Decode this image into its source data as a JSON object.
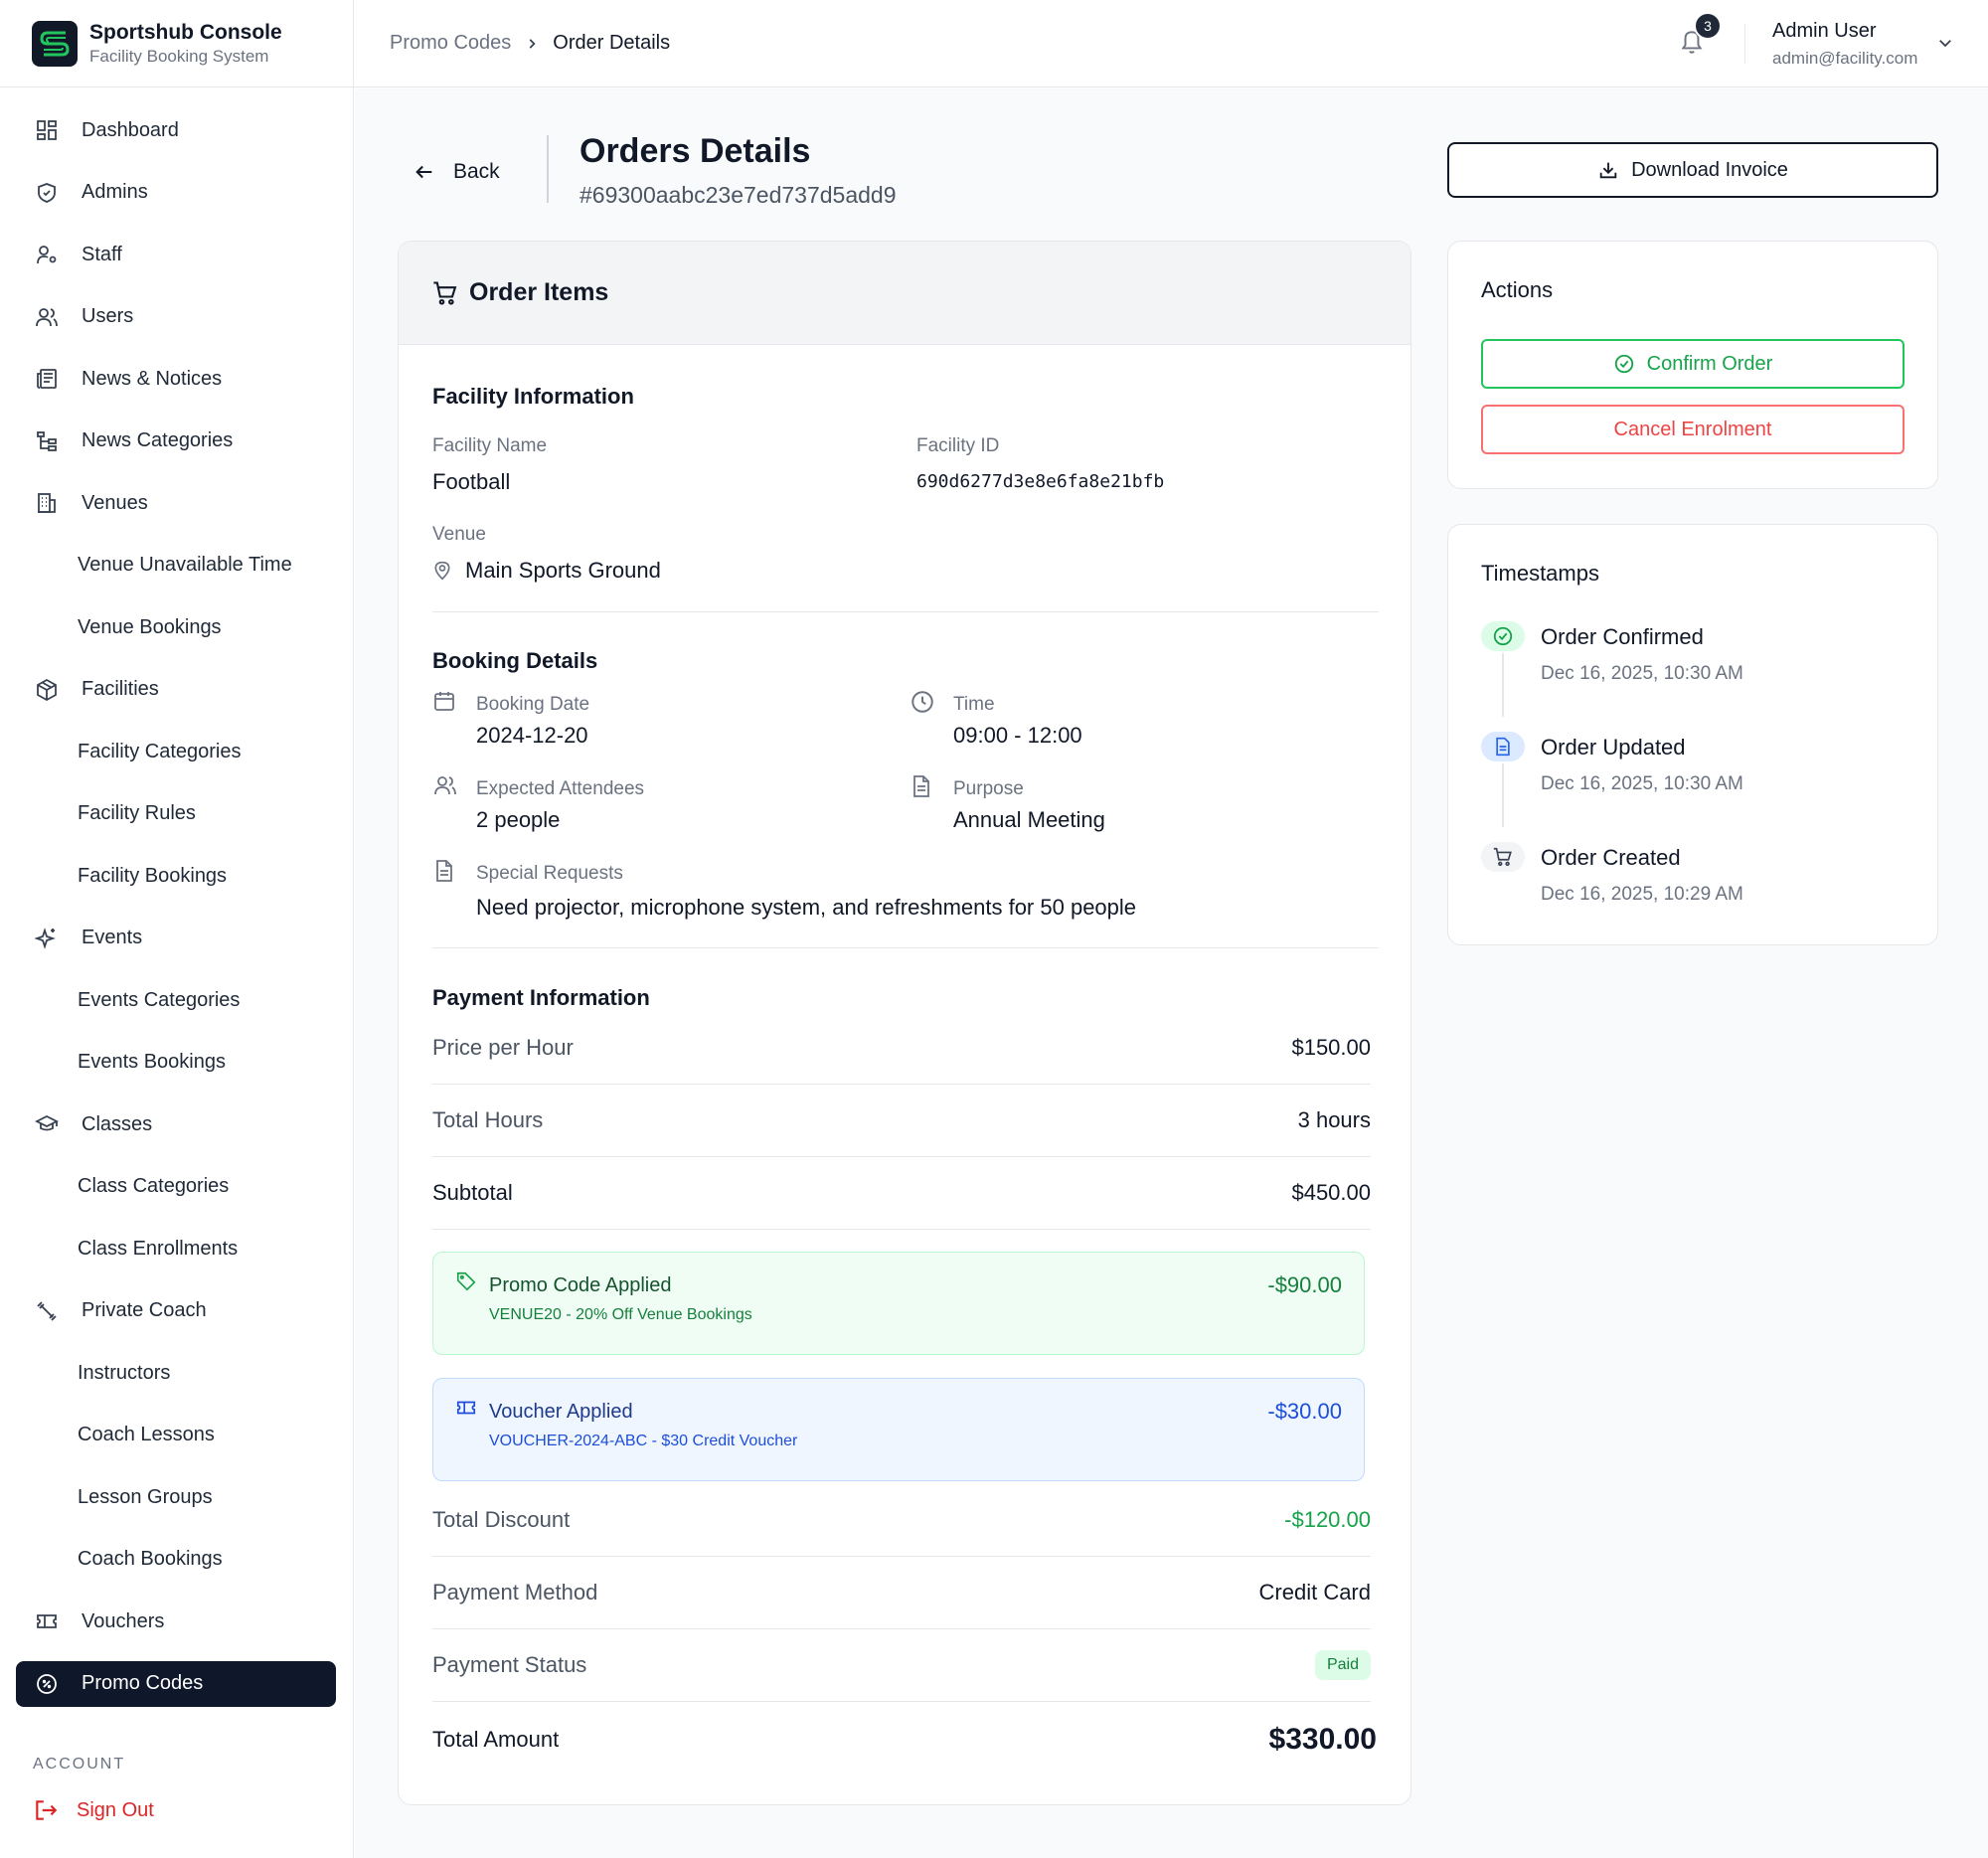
{
  "brand": {
    "title": "Sportshub Console",
    "subtitle": "Facility Booking System"
  },
  "sidebar": {
    "items": [
      {
        "label": "Dashboard",
        "icon": "dashboard-icon"
      },
      {
        "label": "Admins",
        "icon": "shield-icon"
      },
      {
        "label": "Staff",
        "icon": "staff-icon"
      },
      {
        "label": "Users",
        "icon": "users-icon"
      },
      {
        "label": "News & Notices",
        "icon": "newspaper-icon"
      },
      {
        "label": "News Categories",
        "icon": "tree-icon"
      },
      {
        "label": "Venues",
        "icon": "building-icon"
      },
      {
        "label": "Venue Unavailable Time",
        "icon": ""
      },
      {
        "label": "Venue Bookings",
        "icon": ""
      },
      {
        "label": "Facilities",
        "icon": "box-icon"
      },
      {
        "label": "Facility Categories",
        "icon": ""
      },
      {
        "label": "Facility Rules",
        "icon": ""
      },
      {
        "label": "Facility Bookings",
        "icon": ""
      },
      {
        "label": "Events",
        "icon": "sparkles-icon"
      },
      {
        "label": "Events Categories",
        "icon": ""
      },
      {
        "label": "Events Bookings",
        "icon": ""
      },
      {
        "label": "Classes",
        "icon": "graduation-cap-icon"
      },
      {
        "label": "Class Categories",
        "icon": ""
      },
      {
        "label": "Class Enrollments",
        "icon": ""
      },
      {
        "label": "Private Coach",
        "icon": "dumbbell-icon"
      },
      {
        "label": "Instructors",
        "icon": ""
      },
      {
        "label": "Coach Lessons",
        "icon": ""
      },
      {
        "label": "Lesson Groups",
        "icon": ""
      },
      {
        "label": "Coach Bookings",
        "icon": ""
      },
      {
        "label": "Vouchers",
        "icon": "ticket-icon"
      },
      {
        "label": "Promo Codes",
        "icon": "percent-icon"
      }
    ],
    "account_label": "ACCOUNT",
    "sign_out": "Sign Out"
  },
  "header": {
    "breadcrumb": [
      "Promo Codes",
      "Order Details"
    ],
    "notification_count": "3",
    "user_name": "Admin User",
    "user_email": "admin@facility.com"
  },
  "page": {
    "back_label": "Back",
    "title": "Orders Details",
    "order_id": "#69300aabc23e7ed737d5add9",
    "download_label": "Download Invoice"
  },
  "order_items": {
    "title": "Order Items",
    "facility_section": "Facility Information",
    "facility_name_label": "Facility Name",
    "facility_name": "Football",
    "facility_id_label": "Facility ID",
    "facility_id": "690d6277d3e8e6fa8e21bfb",
    "venue_label": "Venue",
    "venue": "Main Sports Ground",
    "booking_section": "Booking Details",
    "booking_date_label": "Booking Date",
    "booking_date": "2024-12-20",
    "time_label": "Time",
    "time": "09:00 - 12:00",
    "attendees_label": "Expected Attendees",
    "attendees": "2 people",
    "purpose_label": "Purpose",
    "purpose": "Annual Meeting",
    "special_label": "Special Requests",
    "special": "Need projector, microphone system, and refreshments for 50 people",
    "payment_section": "Payment Information",
    "price_per_hour_label": "Price per Hour",
    "price_per_hour": "$150.00",
    "total_hours_label": "Total Hours",
    "total_hours": "3 hours",
    "subtotal_label": "Subtotal",
    "subtotal": "$450.00",
    "promo_title": "Promo Code Applied",
    "promo_desc": "VENUE20 - 20% Off Venue Bookings",
    "promo_amount": "-$90.00",
    "voucher_title": "Voucher Applied",
    "voucher_desc": "VOUCHER-2024-ABC - $30 Credit Voucher",
    "voucher_amount": "-$30.00",
    "total_discount_label": "Total Discount",
    "total_discount": "-$120.00",
    "payment_method_label": "Payment Method",
    "payment_method": "Credit Card",
    "payment_status_label": "Payment Status",
    "payment_status": "Paid",
    "total_amount_label": "Total Amount",
    "total_amount": "$330.00"
  },
  "actions": {
    "title": "Actions",
    "confirm_label": "Confirm Order",
    "cancel_label": "Cancel Enrolment"
  },
  "timestamps": {
    "title": "Timestamps",
    "events": [
      {
        "title": "Order Confirmed",
        "time": "Dec 16, 2025, 10:30 AM"
      },
      {
        "title": "Order Updated",
        "time": "Dec 16, 2025, 10:30 AM"
      },
      {
        "title": "Order Created",
        "time": "Dec 16, 2025, 10:29 AM"
      }
    ]
  },
  "colors": {
    "accent_green": "#16a34a",
    "danger": "#ef4444",
    "active_nav": "#0f172a",
    "voucher_blue": "#1d4ed8"
  }
}
